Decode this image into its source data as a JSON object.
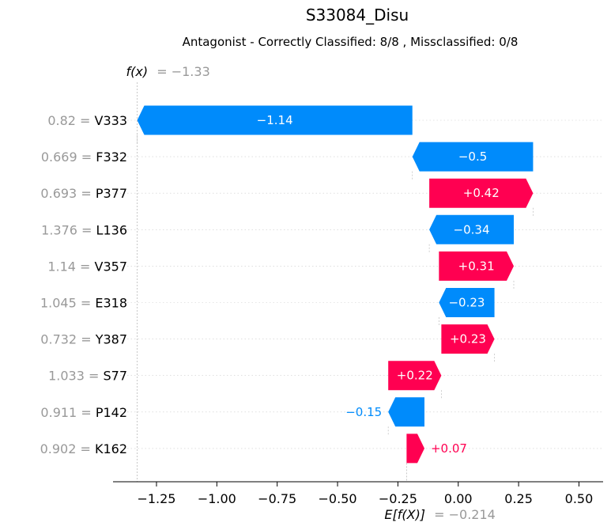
{
  "chart_data": {
    "type": "waterfall",
    "title": "S33084_Disu",
    "subtitle": "Antagonist - Correctly Classified: 8/8 , Missclassified: 0/8",
    "fx_label": "f(x)",
    "fx_value_text": "= −1.33",
    "fx_value": -1.33,
    "ex_label": "E[f(X)]",
    "ex_value_text": "= −0.214",
    "ex_value": -0.214,
    "xlim": [
      -1.43,
      0.6
    ],
    "xticks": [
      {
        "v": -1.25,
        "label": "−1.25"
      },
      {
        "v": -1.0,
        "label": "−1.00"
      },
      {
        "v": -0.75,
        "label": "−0.75"
      },
      {
        "v": -0.5,
        "label": "−0.50"
      },
      {
        "v": -0.25,
        "label": "−0.25"
      },
      {
        "v": 0.0,
        "label": "0.00"
      },
      {
        "v": 0.25,
        "label": "0.25"
      },
      {
        "v": 0.5,
        "label": "0.50"
      }
    ],
    "colors": {
      "positive": "#ff0051",
      "negative": "#008bfb"
    },
    "features": [
      {
        "value": "0.82",
        "name": "V333",
        "start": -0.19,
        "end": -1.33,
        "label": "−1.14"
      },
      {
        "value": "0.669",
        "name": "F332",
        "start": 0.31,
        "end": -0.19,
        "label": "−0.5"
      },
      {
        "value": "0.693",
        "name": "P377",
        "start": -0.12,
        "end": 0.31,
        "label": "+0.42"
      },
      {
        "value": "1.376",
        "name": "L136",
        "start": 0.23,
        "end": -0.12,
        "label": "−0.34"
      },
      {
        "value": "1.14",
        "name": "V357",
        "start": -0.08,
        "end": 0.23,
        "label": "+0.31"
      },
      {
        "value": "1.045",
        "name": "E318",
        "start": 0.15,
        "end": -0.08,
        "label": "−0.23"
      },
      {
        "value": "0.732",
        "name": "Y387",
        "start": -0.07,
        "end": 0.15,
        "label": "+0.23"
      },
      {
        "value": "1.033",
        "name": "S77",
        "start": -0.29,
        "end": -0.07,
        "label": "+0.22"
      },
      {
        "value": "0.911",
        "name": "P142",
        "start": -0.14,
        "end": -0.29,
        "label": "−0.15"
      },
      {
        "value": "0.902",
        "name": "K162",
        "start": -0.214,
        "end": -0.14,
        "label": "+0.07"
      }
    ]
  }
}
